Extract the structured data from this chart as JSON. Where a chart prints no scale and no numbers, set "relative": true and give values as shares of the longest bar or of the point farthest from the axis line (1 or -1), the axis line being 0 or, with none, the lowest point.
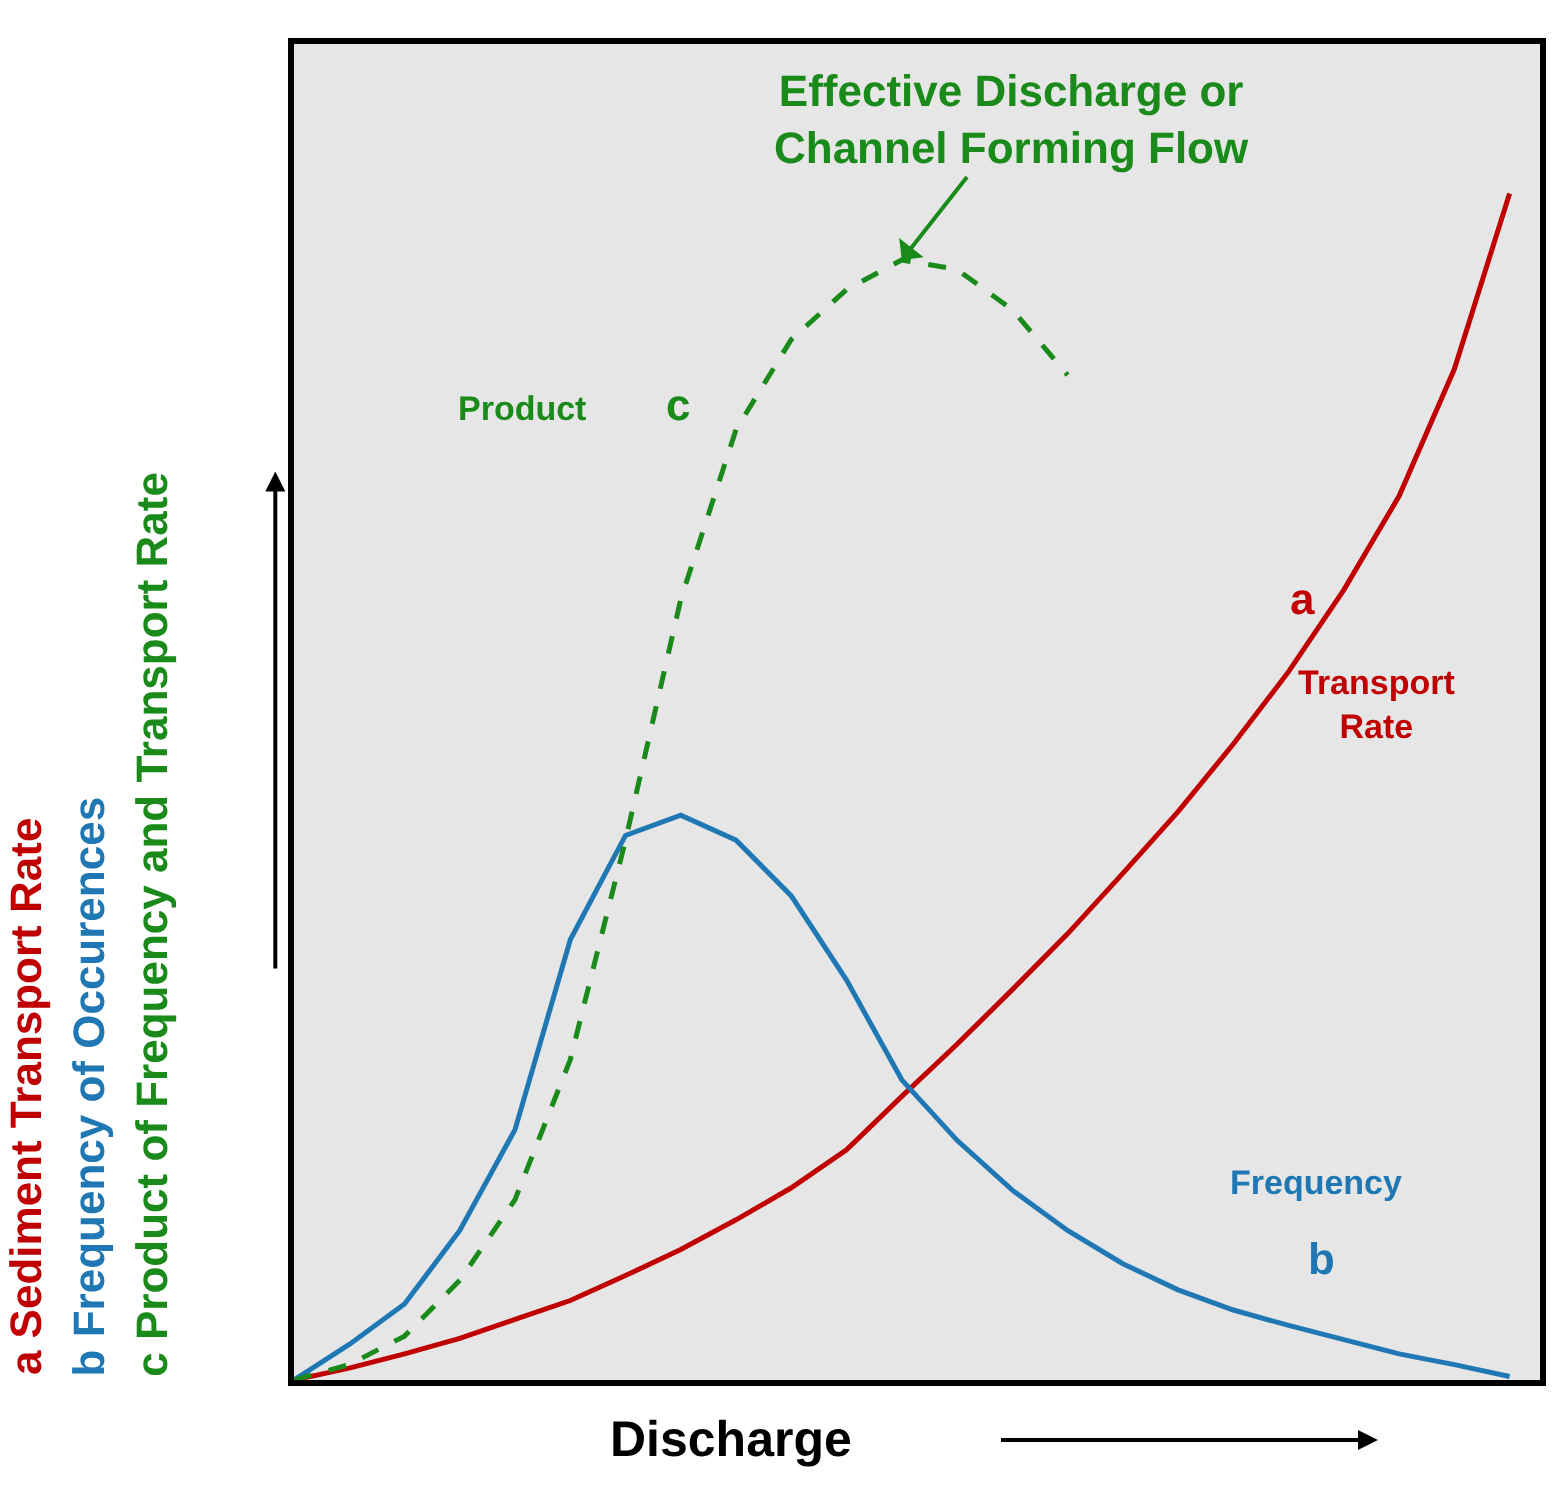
{
  "chart_data": {
    "type": "line",
    "relative": true,
    "xlabel": "Discharge",
    "ylabel": "a Sediment Transport Rate\nb Frequency of Occurences\nc Product of Frequency and Transport Rate",
    "grid": false,
    "legend": false,
    "categories": [
      null,
      null,
      null,
      null,
      null,
      null,
      null,
      null,
      null,
      null,
      null,
      null,
      null,
      null,
      null,
      null,
      null,
      null,
      null,
      null,
      null,
      null,
      null
    ],
    "series": [
      {
        "name": "Transport Rate",
        "color": "#c00000",
        "values": [
          0,
          0.01,
          0.022,
          0.035,
          0.051,
          0.067,
          0.088,
          0.11,
          0.135,
          0.162,
          0.194,
          0.239,
          0.283,
          0.329,
          0.376,
          0.427,
          0.479,
          0.536,
          0.597,
          0.666,
          0.745,
          0.852,
          1
        ]
      },
      {
        "name": "Frequency",
        "color": "#1f78b4",
        "values": [
          0,
          0.03,
          0.064,
          0.126,
          0.211,
          0.371,
          0.459,
          0.476,
          0.455,
          0.408,
          0.337,
          0.253,
          0.202,
          0.16,
          0.126,
          0.098,
          0.076,
          0.059,
          0.046,
          0.034,
          0.022,
          0.013,
          0.003
        ]
      },
      {
        "name": "Product",
        "color": "#1a8a1a",
        "line_style": "dashed",
        "values": [
          0,
          0.013,
          0.037,
          0.084,
          0.152,
          0.27,
          0.455,
          0.658,
          0.801,
          0.877,
          0.919,
          0.944,
          0.936,
          0.902,
          0.847,
          null,
          null,
          null,
          null,
          null,
          null,
          null,
          null
        ]
      }
    ],
    "annotations": [
      "Effective Discharge or\nChannel Forming Flow",
      "a",
      "b",
      "c"
    ]
  }
}
